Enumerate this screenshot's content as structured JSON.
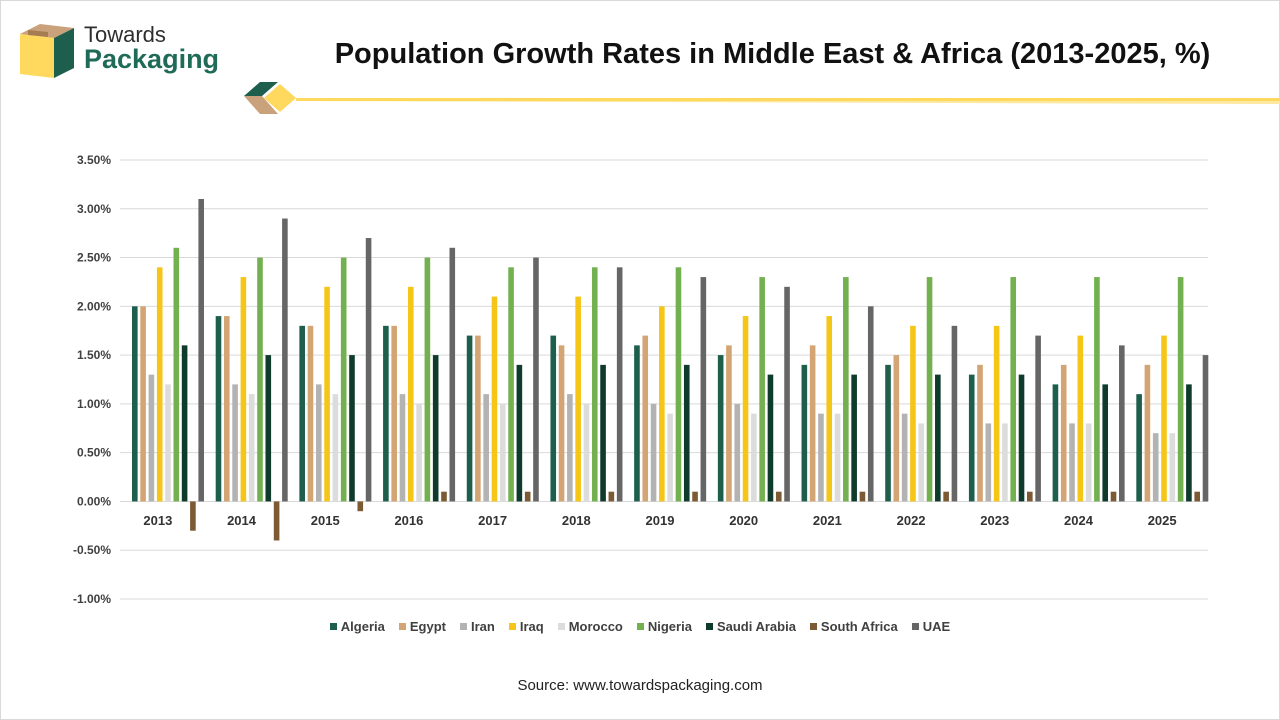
{
  "brand": {
    "line1": "Towards",
    "line2": "Packaging"
  },
  "source": "Source: www.towardspackaging.com",
  "colors": {
    "Algeria": "#1d5e4d",
    "Egypt": "#d4a574",
    "Iran": "#b3b3b3",
    "Iraq": "#f5c518",
    "Morocco": "#dcdcdc",
    "Nigeria": "#73b04f",
    "Saudi Arabia": "#0e3b2c",
    "South Africa": "#7b5a34",
    "UAE": "#666666"
  },
  "chart_data": {
    "type": "bar",
    "title": "Population Growth Rates in Middle East & Africa (2013-2025, %)",
    "xlabel": "",
    "ylabel": "",
    "ylim": [
      -1.0,
      3.5
    ],
    "y_ticks": [
      {
        "value": 3.5,
        "label": "3.50%"
      },
      {
        "value": 3.0,
        "label": "3.00%"
      },
      {
        "value": 2.5,
        "label": "2.50%"
      },
      {
        "value": 2.0,
        "label": "2.00%"
      },
      {
        "value": 1.5,
        "label": "1.50%"
      },
      {
        "value": 1.0,
        "label": "1.00%"
      },
      {
        "value": 0.5,
        "label": "0.50%"
      },
      {
        "value": 0.0,
        "label": "0.00%"
      },
      {
        "value": -0.5,
        "label": "-0.50%"
      },
      {
        "value": -1.0,
        "label": "-1.00%"
      }
    ],
    "grid": true,
    "legend": "bottom",
    "categories": [
      "2013",
      "2014",
      "2015",
      "2016",
      "2017",
      "2018",
      "2019",
      "2020",
      "2021",
      "2022",
      "2023",
      "2024",
      "2025"
    ],
    "series": [
      {
        "name": "Algeria",
        "values": [
          2.0,
          1.9,
          1.8,
          1.8,
          1.7,
          1.7,
          1.6,
          1.5,
          1.4,
          1.4,
          1.3,
          1.2,
          1.1
        ]
      },
      {
        "name": "Egypt",
        "values": [
          2.0,
          1.9,
          1.8,
          1.8,
          1.7,
          1.6,
          1.7,
          1.6,
          1.6,
          1.5,
          1.4,
          1.4,
          1.4
        ]
      },
      {
        "name": "Iran",
        "values": [
          1.3,
          1.2,
          1.2,
          1.1,
          1.1,
          1.1,
          1.0,
          1.0,
          0.9,
          0.9,
          0.8,
          0.8,
          0.7
        ]
      },
      {
        "name": "Iraq",
        "values": [
          2.4,
          2.3,
          2.2,
          2.2,
          2.1,
          2.1,
          2.0,
          1.9,
          1.9,
          1.8,
          1.8,
          1.7,
          1.7
        ]
      },
      {
        "name": "Morocco",
        "values": [
          1.2,
          1.1,
          1.1,
          1.0,
          1.0,
          1.0,
          0.9,
          0.9,
          0.9,
          0.8,
          0.8,
          0.8,
          0.7
        ]
      },
      {
        "name": "Nigeria",
        "values": [
          2.6,
          2.5,
          2.5,
          2.5,
          2.4,
          2.4,
          2.4,
          2.3,
          2.3,
          2.3,
          2.3,
          2.3,
          2.3
        ]
      },
      {
        "name": "Saudi Arabia",
        "values": [
          1.6,
          1.5,
          1.5,
          1.5,
          1.4,
          1.4,
          1.4,
          1.3,
          1.3,
          1.3,
          1.3,
          1.2,
          1.2
        ]
      },
      {
        "name": "South Africa",
        "values": [
          -0.3,
          -0.4,
          -0.1,
          0.1,
          0.1,
          0.1,
          0.1,
          0.1,
          0.1,
          0.1,
          0.1,
          0.1,
          0.1
        ]
      },
      {
        "name": "UAE",
        "values": [
          3.1,
          2.9,
          2.7,
          2.6,
          2.5,
          2.4,
          2.3,
          2.2,
          2.0,
          1.8,
          1.7,
          1.6,
          1.5
        ]
      }
    ]
  }
}
